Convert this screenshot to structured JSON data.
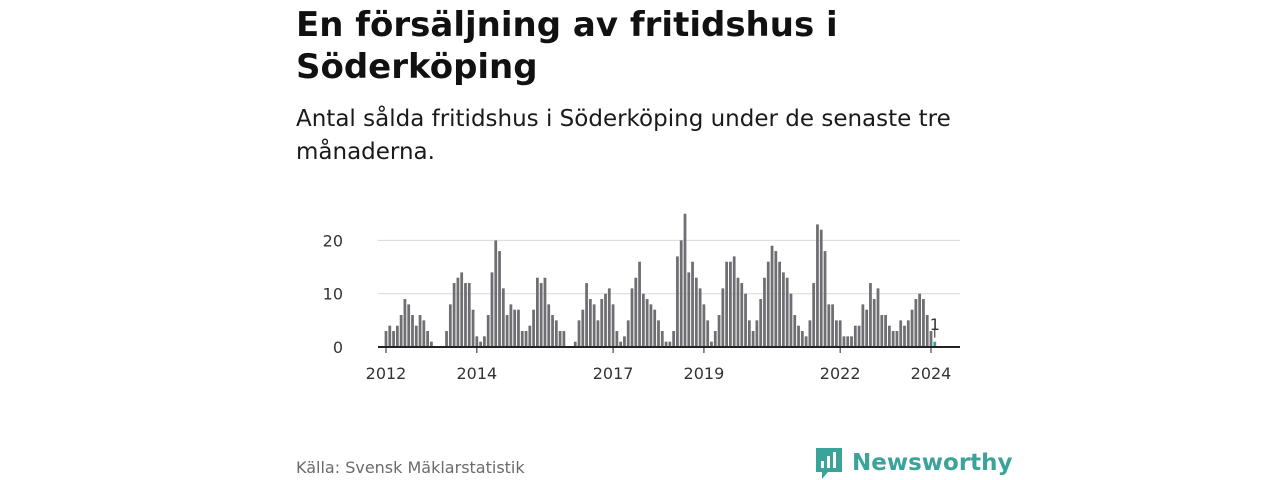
{
  "header": {
    "title": "En försäljning av fritidshus i Söderköping",
    "subtitle": "Antal sålda fritidshus i Söderköping under de senaste tre månaderna."
  },
  "footer": {
    "source": "Källa: Svensk Mäklarstatistik",
    "brand": "Newsworthy",
    "brand_icon": "bar-chart-speech-bubble-icon"
  },
  "colors": {
    "bar": "#6f6e73",
    "highlight": "#3aa39a",
    "grid": "#d9d9d9",
    "axis": "#222222"
  },
  "chart_data": {
    "type": "bar",
    "title": "En försäljning av fritidshus i Söderköping",
    "subtitle": "Antal sålda fritidshus i Söderköping under de senaste tre månaderna.",
    "xlabel": "",
    "ylabel": "",
    "ylim": [
      0,
      25
    ],
    "yticks": [
      0,
      10,
      20
    ],
    "xticks": [
      "2012",
      "2014",
      "2017",
      "2019",
      "2022",
      "2024"
    ],
    "grid": true,
    "start": "2012-01",
    "end": "2024-01",
    "values": [
      3,
      4,
      3,
      4,
      6,
      9,
      8,
      6,
      4,
      6,
      5,
      3,
      1,
      0,
      0,
      0,
      3,
      8,
      12,
      13,
      14,
      12,
      12,
      7,
      2,
      1,
      2,
      6,
      14,
      20,
      18,
      11,
      6,
      8,
      7,
      7,
      3,
      3,
      4,
      7,
      13,
      12,
      13,
      8,
      6,
      5,
      3,
      3,
      0,
      0,
      1,
      5,
      7,
      12,
      9,
      8,
      5,
      9,
      10,
      11,
      8,
      3,
      1,
      2,
      5,
      11,
      13,
      16,
      10,
      9,
      8,
      7,
      5,
      3,
      1,
      1,
      3,
      17,
      20,
      25,
      14,
      16,
      13,
      11,
      8,
      5,
      1,
      3,
      6,
      11,
      16,
      16,
      17,
      13,
      12,
      10,
      5,
      3,
      5,
      9,
      13,
      16,
      19,
      18,
      16,
      14,
      13,
      10,
      6,
      4,
      3,
      2,
      5,
      12,
      23,
      22,
      18,
      8,
      8,
      5,
      5,
      2,
      2,
      2,
      4,
      4,
      8,
      7,
      12,
      9,
      11,
      6,
      6,
      4,
      3,
      3,
      5,
      4,
      5,
      7,
      9,
      10,
      9,
      6,
      3,
      1
    ],
    "highlight": {
      "index": -1,
      "value": 1,
      "label": "1"
    }
  }
}
